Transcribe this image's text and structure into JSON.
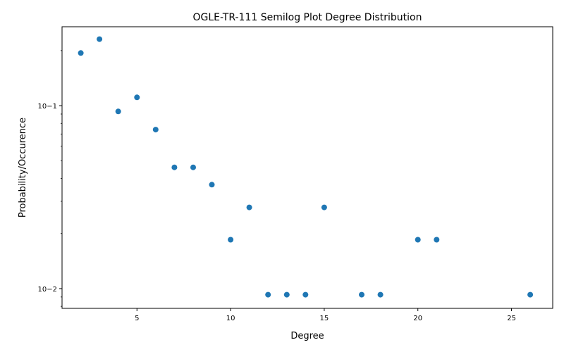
{
  "chart_data": {
    "type": "scatter",
    "title": "OGLE-TR-111 Semilog Plot Degree Distribution",
    "xlabel": "Degree",
    "ylabel": "Probability/Occurence",
    "xlim": [
      1.0,
      27.2
    ],
    "ylim": [
      0.0078,
      0.27
    ],
    "yscale": "log",
    "xticks": [
      5,
      10,
      15,
      20,
      25
    ],
    "xtick_labels": [
      "5",
      "10",
      "15",
      "20",
      "25"
    ],
    "yticks": [
      0.01,
      0.1
    ],
    "ytick_labels": [
      "10−2",
      "10−1"
    ],
    "grid": false,
    "marker_color": "#1f77b4",
    "series": [
      {
        "x": [
          2,
          3,
          4,
          5,
          6,
          7,
          8,
          9,
          10,
          11,
          12,
          13,
          14,
          15,
          17,
          18,
          20,
          21,
          26
        ],
        "y": [
          0.194,
          0.231,
          0.093,
          0.111,
          0.074,
          0.046,
          0.046,
          0.037,
          0.0185,
          0.0278,
          0.00926,
          0.00926,
          0.00926,
          0.0278,
          0.00926,
          0.00926,
          0.0185,
          0.0185,
          0.00926
        ]
      }
    ]
  }
}
